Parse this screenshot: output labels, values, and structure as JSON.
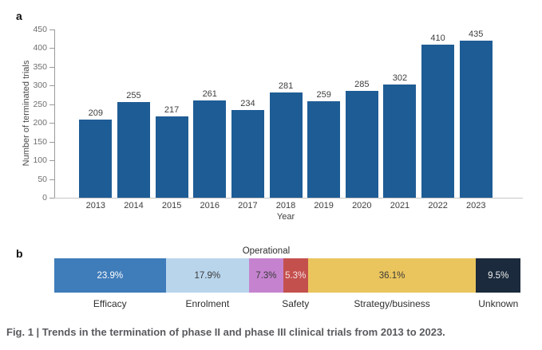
{
  "panel_a": {
    "label": "a"
  },
  "panel_b": {
    "label": "b"
  },
  "caption": "Fig. 1 | Trends in the termination of phase II and phase III clinical trials from 2013 to 2023.",
  "chart_data": [
    {
      "type": "bar",
      "title": "",
      "xlabel": "Year",
      "ylabel": "Number of terminated trials",
      "categories": [
        "2013",
        "2014",
        "2015",
        "2016",
        "2017",
        "2018",
        "2019",
        "2020",
        "2021",
        "2022",
        "2023"
      ],
      "values": [
        209,
        255,
        217,
        261,
        234,
        281,
        259,
        285,
        302,
        410,
        435
      ],
      "ylim": [
        0,
        450
      ],
      "yticks": [
        0,
        50,
        100,
        150,
        200,
        250,
        300,
        350,
        400,
        450
      ],
      "grid": false,
      "legend": "none",
      "bar_color": "#1e5c95",
      "value_labels": true
    },
    {
      "type": "bar",
      "stacked": true,
      "orientation": "horizontal",
      "title": "",
      "segments": [
        {
          "label": "Efficacy",
          "pct": 23.9,
          "display": "23.9%",
          "color": "#3f7cba",
          "text_color": "#ffffff",
          "label_side": "below"
        },
        {
          "label": "Enrolment",
          "pct": 17.9,
          "display": "17.9%",
          "color": "#b9d5ec",
          "text_color": "#3a3a3a",
          "label_side": "below"
        },
        {
          "label": "Operational",
          "pct": 7.3,
          "display": "7.3%",
          "color": "#c583cf",
          "text_color": "#3a3a3a",
          "label_side": "above"
        },
        {
          "label": "Safety",
          "pct": 5.3,
          "display": "5.3%",
          "color": "#c4504e",
          "text_color": "#f6e2e2",
          "label_side": "below"
        },
        {
          "label": "Strategy/business",
          "pct": 36.1,
          "display": "36.1%",
          "color": "#eac55d",
          "text_color": "#3a3a3a",
          "label_side": "below"
        },
        {
          "label": "Unknown",
          "pct": 9.5,
          "display": "9.5%",
          "color": "#1b2a3c",
          "text_color": "#eeeeee",
          "label_side": "below"
        }
      ]
    }
  ]
}
